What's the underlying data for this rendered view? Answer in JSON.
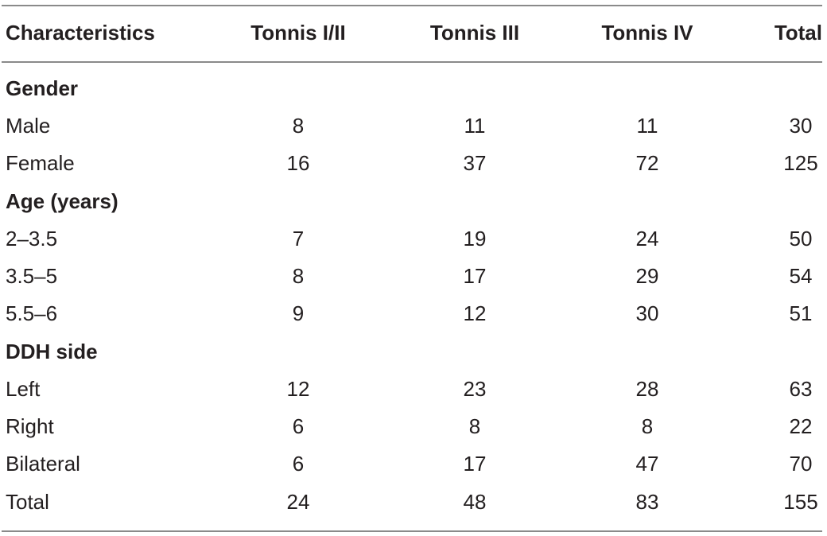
{
  "columns": [
    "Characteristics",
    "Tonnis I/II",
    "Tonnis III",
    "Tonnis IV",
    "Total"
  ],
  "sections": {
    "gender": {
      "title": "Gender",
      "rows": [
        {
          "label": "Male",
          "v1": "8",
          "v2": "11",
          "v3": "11",
          "total": "30"
        },
        {
          "label": "Female",
          "v1": "16",
          "v2": "37",
          "v3": "72",
          "total": "125"
        }
      ]
    },
    "age": {
      "title": "Age (years)",
      "rows": [
        {
          "label": "2–3.5",
          "v1": "7",
          "v2": "19",
          "v3": "24",
          "total": "50"
        },
        {
          "label": "3.5–5",
          "v1": "8",
          "v2": "17",
          "v3": "29",
          "total": "54"
        },
        {
          "label": "5.5–6",
          "v1": "9",
          "v2": "12",
          "v3": "30",
          "total": "51"
        }
      ]
    },
    "side": {
      "title": "DDH side",
      "rows": [
        {
          "label": "Left",
          "v1": "12",
          "v2": "23",
          "v3": "28",
          "total": "63"
        },
        {
          "label": "Right",
          "v1": "6",
          "v2": "8",
          "v3": "8",
          "total": "22"
        },
        {
          "label": "Bilateral",
          "v1": "6",
          "v2": "17",
          "v3": "47",
          "total": "70"
        }
      ]
    }
  },
  "total_row": {
    "label": "Total",
    "v1": "24",
    "v2": "48",
    "v3": "83",
    "total": "155"
  }
}
